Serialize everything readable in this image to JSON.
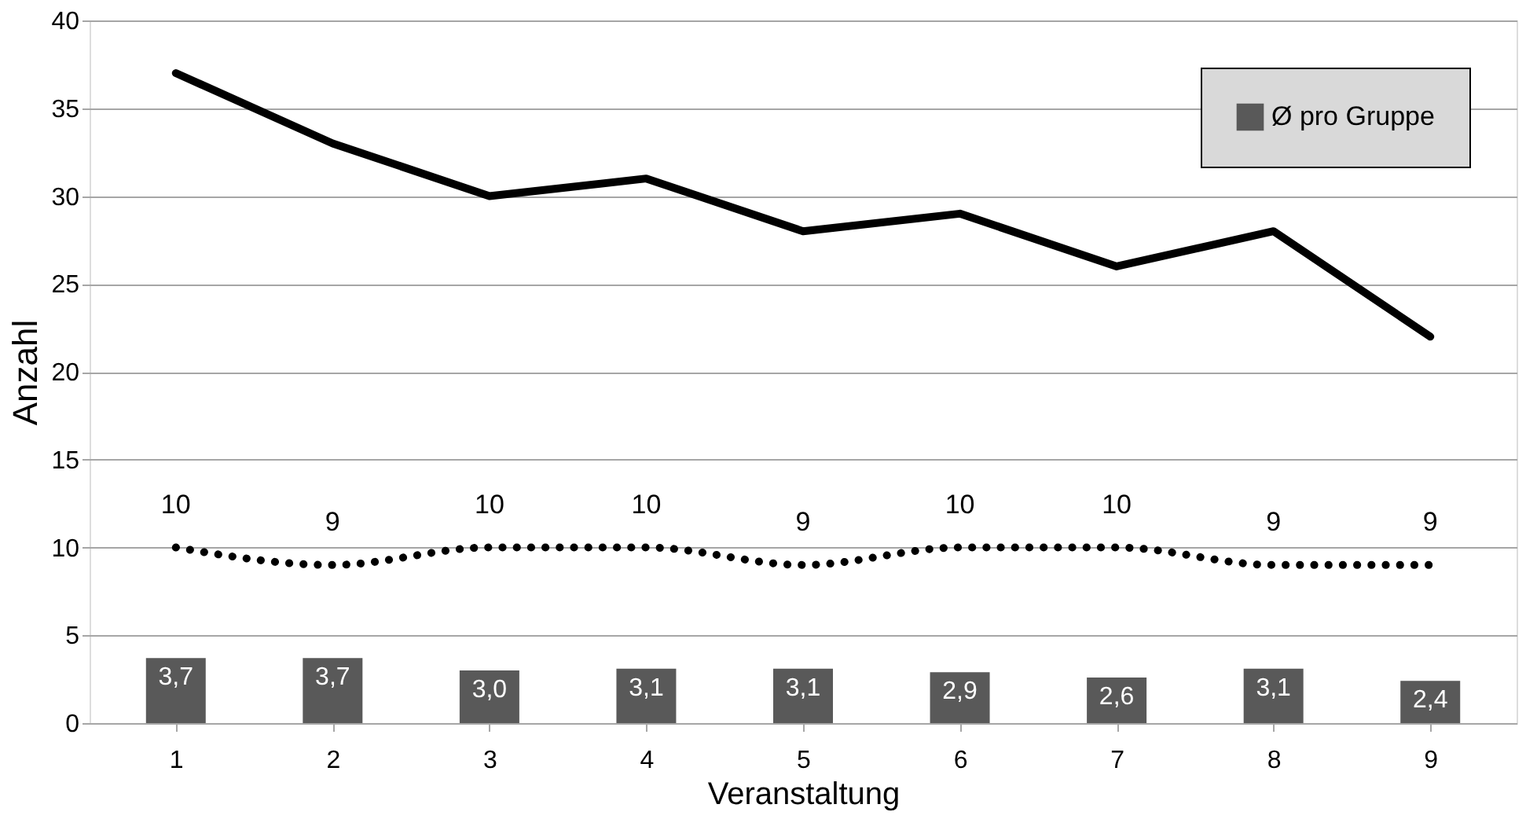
{
  "chart_data": {
    "type": "bar",
    "xlabel": "Veranstaltung",
    "ylabel": "Anzahl",
    "categories": [
      "1",
      "2",
      "3",
      "4",
      "5",
      "6",
      "7",
      "8",
      "9"
    ],
    "series": [
      {
        "name": "Ø pro Gruppe",
        "color": "#595959",
        "values": [
          3.7,
          3.7,
          3.0,
          3.1,
          3.1,
          2.9,
          2.6,
          3.1,
          2.4
        ],
        "value_labels": [
          "3,7",
          "3,7",
          "3,0",
          "3,1",
          "3,1",
          "2,9",
          "2,6",
          "3,1",
          "2,4"
        ]
      },
      {
        "type": "line",
        "color": "#000000",
        "line_style": "solid",
        "values": [
          37,
          33,
          30,
          31,
          28,
          29,
          26,
          28,
          22
        ]
      },
      {
        "type": "line",
        "color": "#000000",
        "line_style": "dotted",
        "values": [
          10,
          9,
          10,
          10,
          9,
          10,
          10,
          9,
          9
        ],
        "value_labels": [
          "10",
          "9",
          "10",
          "10",
          "9",
          "10",
          "10",
          "9",
          "9"
        ]
      }
    ],
    "ylim": [
      0,
      40
    ],
    "yticks": [
      0,
      5,
      10,
      15,
      20,
      25,
      30,
      35,
      40
    ],
    "grid": "y",
    "legend": "top right"
  }
}
